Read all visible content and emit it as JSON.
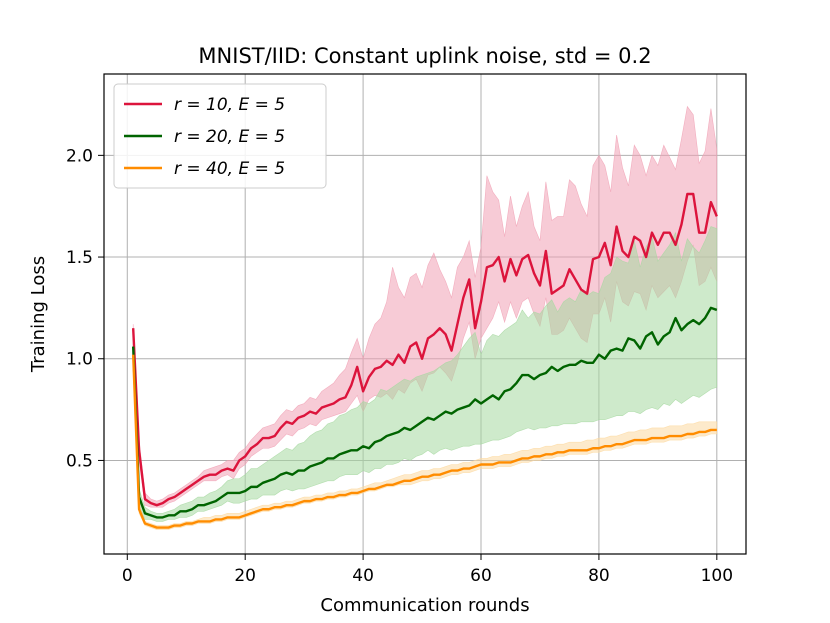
{
  "chart_data": {
    "type": "line",
    "title": "MNIST/IID: Constant uplink noise, std = 0.2",
    "xlabel": "Communication rounds",
    "ylabel": "Training Loss",
    "xlim": [
      -3.95,
      104.95
    ],
    "ylim": [
      0.04,
      2.4
    ],
    "xticks": [
      0,
      20,
      40,
      60,
      80,
      100
    ],
    "yticks": [
      0.5,
      1.0,
      1.5,
      2.0
    ],
    "xtick_labels": [
      "0",
      "20",
      "40",
      "60",
      "80",
      "100"
    ],
    "ytick_labels": [
      "0.5",
      "1.0",
      "1.5",
      "2.0"
    ],
    "grid": true,
    "legend_position": "top-left",
    "x": [
      1,
      2,
      3,
      4,
      5,
      6,
      7,
      8,
      9,
      10,
      11,
      12,
      13,
      14,
      15,
      16,
      17,
      18,
      19,
      20,
      21,
      22,
      23,
      24,
      25,
      26,
      27,
      28,
      29,
      30,
      31,
      32,
      33,
      34,
      35,
      36,
      37,
      38,
      39,
      40,
      41,
      42,
      43,
      44,
      45,
      46,
      47,
      48,
      49,
      50,
      51,
      52,
      53,
      54,
      55,
      56,
      57,
      58,
      59,
      60,
      61,
      62,
      63,
      64,
      65,
      66,
      67,
      68,
      69,
      70,
      71,
      72,
      73,
      74,
      75,
      76,
      77,
      78,
      79,
      80,
      81,
      82,
      83,
      84,
      85,
      86,
      87,
      88,
      89,
      90,
      91,
      92,
      93,
      94,
      95,
      96,
      97,
      98,
      99,
      100
    ],
    "series": [
      {
        "name": "r = 10, E = 5",
        "color": "#dc143c",
        "band_color": "#f0a0b4",
        "values": [
          1.15,
          0.55,
          0.31,
          0.29,
          0.28,
          0.29,
          0.31,
          0.32,
          0.34,
          0.36,
          0.38,
          0.4,
          0.42,
          0.43,
          0.43,
          0.45,
          0.46,
          0.45,
          0.5,
          0.52,
          0.56,
          0.58,
          0.61,
          0.61,
          0.62,
          0.66,
          0.69,
          0.68,
          0.71,
          0.72,
          0.74,
          0.73,
          0.76,
          0.77,
          0.78,
          0.8,
          0.81,
          0.87,
          0.96,
          0.84,
          0.91,
          0.95,
          0.96,
          0.99,
          0.97,
          1.02,
          0.98,
          1.06,
          1.08,
          1.0,
          1.1,
          1.12,
          1.15,
          1.12,
          1.04,
          1.17,
          1.3,
          1.39,
          1.15,
          1.28,
          1.45,
          1.46,
          1.5,
          1.38,
          1.49,
          1.41,
          1.49,
          1.51,
          1.42,
          1.36,
          1.53,
          1.32,
          1.34,
          1.36,
          1.44,
          1.39,
          1.34,
          1.32,
          1.49,
          1.5,
          1.57,
          1.46,
          1.65,
          1.53,
          1.5,
          1.6,
          1.58,
          1.5,
          1.62,
          1.56,
          1.62,
          1.62,
          1.56,
          1.66,
          1.81,
          1.81,
          1.62,
          1.62,
          1.77,
          1.7
        ],
        "upper": [
          1.17,
          0.6,
          0.34,
          0.31,
          0.3,
          0.31,
          0.33,
          0.34,
          0.36,
          0.38,
          0.4,
          0.42,
          0.45,
          0.46,
          0.47,
          0.48,
          0.5,
          0.5,
          0.54,
          0.56,
          0.6,
          0.63,
          0.66,
          0.67,
          0.68,
          0.72,
          0.75,
          0.74,
          0.77,
          0.78,
          0.81,
          0.8,
          0.84,
          0.86,
          0.88,
          0.92,
          0.95,
          1.03,
          1.1,
          1.0,
          1.1,
          1.17,
          1.2,
          1.28,
          1.45,
          1.35,
          1.3,
          1.4,
          1.42,
          1.35,
          1.46,
          1.52,
          1.44,
          1.38,
          1.3,
          1.45,
          1.5,
          1.58,
          1.4,
          1.55,
          1.9,
          1.82,
          1.78,
          1.6,
          1.8,
          1.65,
          1.75,
          1.82,
          1.65,
          1.58,
          1.87,
          1.68,
          1.7,
          1.7,
          1.88,
          1.85,
          1.76,
          1.7,
          1.95,
          2.0,
          1.95,
          1.82,
          2.1,
          1.94,
          1.85,
          2.05,
          2.0,
          1.9,
          2.0,
          1.95,
          2.05,
          1.99,
          1.93,
          2.08,
          2.24,
          2.2,
          1.96,
          2.02,
          2.23,
          2.03
        ],
        "lower": [
          1.1,
          0.5,
          0.28,
          0.27,
          0.27,
          0.27,
          0.29,
          0.3,
          0.32,
          0.34,
          0.36,
          0.38,
          0.4,
          0.4,
          0.4,
          0.42,
          0.43,
          0.41,
          0.46,
          0.48,
          0.52,
          0.54,
          0.56,
          0.56,
          0.57,
          0.6,
          0.63,
          0.62,
          0.65,
          0.66,
          0.68,
          0.67,
          0.7,
          0.71,
          0.72,
          0.73,
          0.74,
          0.78,
          0.82,
          0.74,
          0.8,
          0.82,
          0.81,
          0.83,
          0.8,
          0.85,
          0.83,
          0.88,
          0.9,
          0.84,
          0.92,
          0.93,
          0.96,
          0.93,
          0.89,
          0.98,
          1.1,
          1.18,
          1.0,
          1.1,
          1.15,
          1.2,
          1.28,
          1.18,
          1.28,
          1.2,
          1.28,
          1.3,
          1.22,
          1.16,
          1.3,
          1.12,
          1.12,
          1.14,
          1.2,
          1.15,
          1.1,
          1.08,
          1.22,
          1.22,
          1.3,
          1.18,
          1.38,
          1.28,
          1.26,
          1.33,
          1.32,
          1.24,
          1.36,
          1.3,
          1.33,
          1.36,
          1.3,
          1.38,
          1.48,
          1.56,
          1.36,
          1.38,
          1.45,
          1.38
        ]
      },
      {
        "name": "r = 20, E = 5",
        "color": "#006400",
        "band_color": "#a6d8a0",
        "values": [
          1.06,
          0.32,
          0.24,
          0.23,
          0.22,
          0.22,
          0.23,
          0.23,
          0.25,
          0.25,
          0.26,
          0.28,
          0.28,
          0.29,
          0.3,
          0.32,
          0.34,
          0.34,
          0.34,
          0.35,
          0.37,
          0.37,
          0.39,
          0.4,
          0.41,
          0.43,
          0.44,
          0.43,
          0.45,
          0.45,
          0.47,
          0.48,
          0.49,
          0.51,
          0.51,
          0.53,
          0.54,
          0.55,
          0.55,
          0.57,
          0.56,
          0.59,
          0.6,
          0.62,
          0.63,
          0.64,
          0.66,
          0.65,
          0.67,
          0.69,
          0.71,
          0.7,
          0.72,
          0.74,
          0.73,
          0.75,
          0.76,
          0.77,
          0.8,
          0.78,
          0.8,
          0.82,
          0.8,
          0.84,
          0.85,
          0.88,
          0.92,
          0.92,
          0.9,
          0.92,
          0.93,
          0.96,
          0.94,
          0.96,
          0.97,
          0.97,
          0.99,
          0.98,
          0.98,
          1.02,
          1.0,
          1.04,
          1.05,
          1.04,
          1.1,
          1.09,
          1.05,
          1.11,
          1.13,
          1.07,
          1.11,
          1.13,
          1.2,
          1.14,
          1.17,
          1.19,
          1.17,
          1.2,
          1.25,
          1.24
        ],
        "upper": [
          1.08,
          0.36,
          0.27,
          0.25,
          0.24,
          0.24,
          0.25,
          0.26,
          0.28,
          0.29,
          0.3,
          0.32,
          0.32,
          0.34,
          0.35,
          0.37,
          0.4,
          0.41,
          0.41,
          0.43,
          0.46,
          0.46,
          0.48,
          0.5,
          0.52,
          0.54,
          0.56,
          0.55,
          0.58,
          0.59,
          0.62,
          0.64,
          0.65,
          0.68,
          0.69,
          0.72,
          0.73,
          0.75,
          0.76,
          0.79,
          0.78,
          0.8,
          0.85,
          0.84,
          0.86,
          0.88,
          0.9,
          0.89,
          0.91,
          0.92,
          0.93,
          0.94,
          0.96,
          0.98,
          0.99,
          1.02,
          1.06,
          1.1,
          1.13,
          1.02,
          1.09,
          1.12,
          1.11,
          1.14,
          1.16,
          1.18,
          1.24,
          1.2,
          1.23,
          1.22,
          1.26,
          1.29,
          1.23,
          1.28,
          1.3,
          1.28,
          1.34,
          1.31,
          1.33,
          1.32,
          1.4,
          1.42,
          1.5,
          1.48,
          1.47,
          1.58,
          1.45,
          1.55,
          1.6,
          1.48,
          1.52,
          1.56,
          1.62,
          1.48,
          1.59,
          1.55,
          1.52,
          1.58,
          1.65,
          1.64
        ],
        "lower": [
          1.04,
          0.28,
          0.21,
          0.21,
          0.2,
          0.2,
          0.21,
          0.21,
          0.22,
          0.22,
          0.23,
          0.25,
          0.25,
          0.26,
          0.27,
          0.28,
          0.3,
          0.29,
          0.29,
          0.3,
          0.31,
          0.31,
          0.33,
          0.33,
          0.33,
          0.35,
          0.36,
          0.35,
          0.36,
          0.36,
          0.37,
          0.38,
          0.39,
          0.4,
          0.4,
          0.42,
          0.43,
          0.43,
          0.43,
          0.45,
          0.44,
          0.46,
          0.46,
          0.48,
          0.48,
          0.49,
          0.51,
          0.5,
          0.52,
          0.53,
          0.55,
          0.53,
          0.55,
          0.56,
          0.55,
          0.56,
          0.57,
          0.57,
          0.58,
          0.58,
          0.59,
          0.6,
          0.6,
          0.61,
          0.62,
          0.64,
          0.65,
          0.66,
          0.65,
          0.66,
          0.66,
          0.67,
          0.67,
          0.68,
          0.68,
          0.68,
          0.69,
          0.69,
          0.69,
          0.7,
          0.7,
          0.71,
          0.72,
          0.72,
          0.74,
          0.74,
          0.73,
          0.75,
          0.76,
          0.75,
          0.78,
          0.77,
          0.8,
          0.78,
          0.8,
          0.82,
          0.81,
          0.83,
          0.85,
          0.86
        ]
      },
      {
        "name": "r = 40, E = 5",
        "color": "#ff8c00",
        "band_color": "#fcd9a0",
        "values": [
          1.02,
          0.26,
          0.19,
          0.18,
          0.17,
          0.17,
          0.17,
          0.18,
          0.18,
          0.19,
          0.19,
          0.2,
          0.2,
          0.2,
          0.21,
          0.21,
          0.22,
          0.22,
          0.22,
          0.23,
          0.24,
          0.25,
          0.26,
          0.26,
          0.27,
          0.27,
          0.28,
          0.28,
          0.29,
          0.3,
          0.3,
          0.31,
          0.31,
          0.32,
          0.32,
          0.33,
          0.33,
          0.34,
          0.34,
          0.35,
          0.36,
          0.36,
          0.37,
          0.38,
          0.38,
          0.39,
          0.4,
          0.4,
          0.41,
          0.42,
          0.42,
          0.43,
          0.43,
          0.44,
          0.45,
          0.45,
          0.46,
          0.46,
          0.47,
          0.48,
          0.48,
          0.48,
          0.49,
          0.49,
          0.49,
          0.5,
          0.51,
          0.51,
          0.52,
          0.52,
          0.53,
          0.53,
          0.54,
          0.54,
          0.55,
          0.55,
          0.55,
          0.55,
          0.56,
          0.56,
          0.57,
          0.57,
          0.58,
          0.58,
          0.59,
          0.6,
          0.6,
          0.6,
          0.61,
          0.61,
          0.61,
          0.62,
          0.62,
          0.62,
          0.63,
          0.63,
          0.64,
          0.64,
          0.65,
          0.65
        ],
        "upper": [
          1.03,
          0.28,
          0.2,
          0.19,
          0.18,
          0.18,
          0.18,
          0.19,
          0.19,
          0.2,
          0.2,
          0.21,
          0.22,
          0.22,
          0.23,
          0.23,
          0.24,
          0.24,
          0.24,
          0.25,
          0.26,
          0.27,
          0.28,
          0.28,
          0.29,
          0.29,
          0.3,
          0.3,
          0.31,
          0.32,
          0.32,
          0.33,
          0.33,
          0.34,
          0.34,
          0.35,
          0.35,
          0.36,
          0.36,
          0.37,
          0.38,
          0.39,
          0.39,
          0.4,
          0.41,
          0.42,
          0.43,
          0.43,
          0.44,
          0.45,
          0.45,
          0.46,
          0.46,
          0.47,
          0.48,
          0.48,
          0.49,
          0.49,
          0.5,
          0.51,
          0.51,
          0.52,
          0.52,
          0.53,
          0.53,
          0.54,
          0.55,
          0.55,
          0.56,
          0.56,
          0.57,
          0.57,
          0.58,
          0.58,
          0.59,
          0.59,
          0.59,
          0.6,
          0.6,
          0.61,
          0.61,
          0.62,
          0.62,
          0.63,
          0.64,
          0.64,
          0.65,
          0.65,
          0.66,
          0.66,
          0.66,
          0.67,
          0.67,
          0.67,
          0.68,
          0.68,
          0.69,
          0.69,
          0.69,
          0.69
        ],
        "lower": [
          1.01,
          0.24,
          0.18,
          0.17,
          0.16,
          0.16,
          0.16,
          0.17,
          0.17,
          0.18,
          0.18,
          0.19,
          0.19,
          0.19,
          0.2,
          0.2,
          0.21,
          0.21,
          0.21,
          0.22,
          0.23,
          0.24,
          0.25,
          0.25,
          0.26,
          0.26,
          0.27,
          0.27,
          0.28,
          0.29,
          0.29,
          0.3,
          0.3,
          0.31,
          0.31,
          0.32,
          0.32,
          0.33,
          0.33,
          0.34,
          0.35,
          0.35,
          0.36,
          0.37,
          0.37,
          0.38,
          0.38,
          0.38,
          0.39,
          0.4,
          0.4,
          0.41,
          0.41,
          0.42,
          0.43,
          0.43,
          0.44,
          0.44,
          0.45,
          0.46,
          0.46,
          0.46,
          0.47,
          0.47,
          0.47,
          0.48,
          0.49,
          0.49,
          0.5,
          0.5,
          0.51,
          0.51,
          0.52,
          0.52,
          0.53,
          0.53,
          0.53,
          0.53,
          0.54,
          0.54,
          0.55,
          0.55,
          0.56,
          0.56,
          0.57,
          0.58,
          0.58,
          0.58,
          0.59,
          0.59,
          0.59,
          0.6,
          0.6,
          0.6,
          0.61,
          0.61,
          0.62,
          0.62,
          0.63,
          0.63
        ]
      }
    ]
  }
}
